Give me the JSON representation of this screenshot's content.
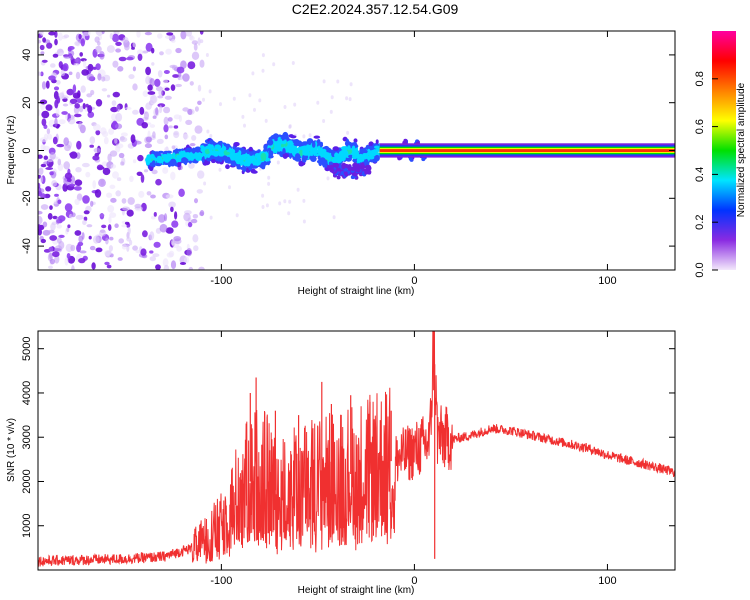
{
  "title": "C2E2.2024.357.12.54.G09",
  "chart_data": [
    {
      "type": "heatmap",
      "xlabel": "Height of straight line (km)",
      "ylabel": "Frequency (Hz)",
      "xlim": [
        -195,
        135
      ],
      "ylim": [
        -50,
        50
      ],
      "xticks": [
        -100,
        0,
        100
      ],
      "xtick_labels": [
        "-100",
        "0",
        "100"
      ],
      "yticks": [
        -40,
        -20,
        0,
        20,
        40
      ],
      "ytick_labels": [
        "-40",
        "-20",
        "0",
        "20",
        "40"
      ],
      "colorbar": {
        "label": "Normalized spectral amplitude",
        "range": [
          0,
          1
        ],
        "ticks": [
          0.0,
          0.2,
          0.4,
          0.6,
          0.8
        ],
        "tick_labels": [
          "0.0",
          "0.2",
          "0.4",
          "0.6",
          "0.8"
        ],
        "colors": [
          "#f3e8fb",
          "#8a2be2",
          "#0033ff",
          "#00e5ff",
          "#00e000",
          "#ffff00",
          "#ff8000",
          "#ff0000",
          "#ff00a0"
        ]
      },
      "features": {
        "noise_region_x": [
          -195,
          -110
        ],
        "signal_track_x": [
          -138,
          -18
        ],
        "clean_line_x": [
          -18,
          135
        ],
        "clean_line_frequency": 0
      },
      "grid": false
    },
    {
      "type": "line",
      "xlabel": "Height of straight line (km)",
      "ylabel": "SNR (10 * v/v)",
      "xlim": [
        -195,
        135
      ],
      "ylim": [
        0,
        5400
      ],
      "xticks": [
        -100,
        0,
        100
      ],
      "xtick_labels": [
        "-100",
        "0",
        "100"
      ],
      "yticks": [
        1000,
        2000,
        3000,
        4000,
        5000
      ],
      "ytick_labels": [
        "1000",
        "2000",
        "3000",
        "4000",
        "5000"
      ],
      "line_color": "#f03030",
      "envelope": {
        "x": [
          -195,
          -150,
          -130,
          -115,
          -100,
          -90,
          -80,
          -70,
          -60,
          -50,
          -40,
          -30,
          -20,
          -10,
          0,
          8,
          10,
          12,
          20,
          30,
          40,
          50,
          60,
          70,
          80,
          90,
          100,
          110,
          120,
          135
        ],
        "y": [
          200,
          250,
          300,
          500,
          1000,
          1800,
          2200,
          1700,
          1900,
          2000,
          2100,
          2200,
          2300,
          2500,
          2700,
          2900,
          5200,
          3000,
          2950,
          3050,
          3200,
          3150,
          3050,
          2950,
          2850,
          2750,
          2600,
          2480,
          2380,
          2200
        ]
      },
      "spikes": {
        "x": [
          -85,
          -82,
          -72,
          -60,
          -48,
          -43,
          -33,
          -23,
          -12,
          10,
          10.5
        ],
        "y": [
          4000,
          4350,
          3600,
          3500,
          4250,
          3750,
          3950,
          3800,
          3600,
          5300,
          250
        ]
      },
      "grid": false
    }
  ]
}
